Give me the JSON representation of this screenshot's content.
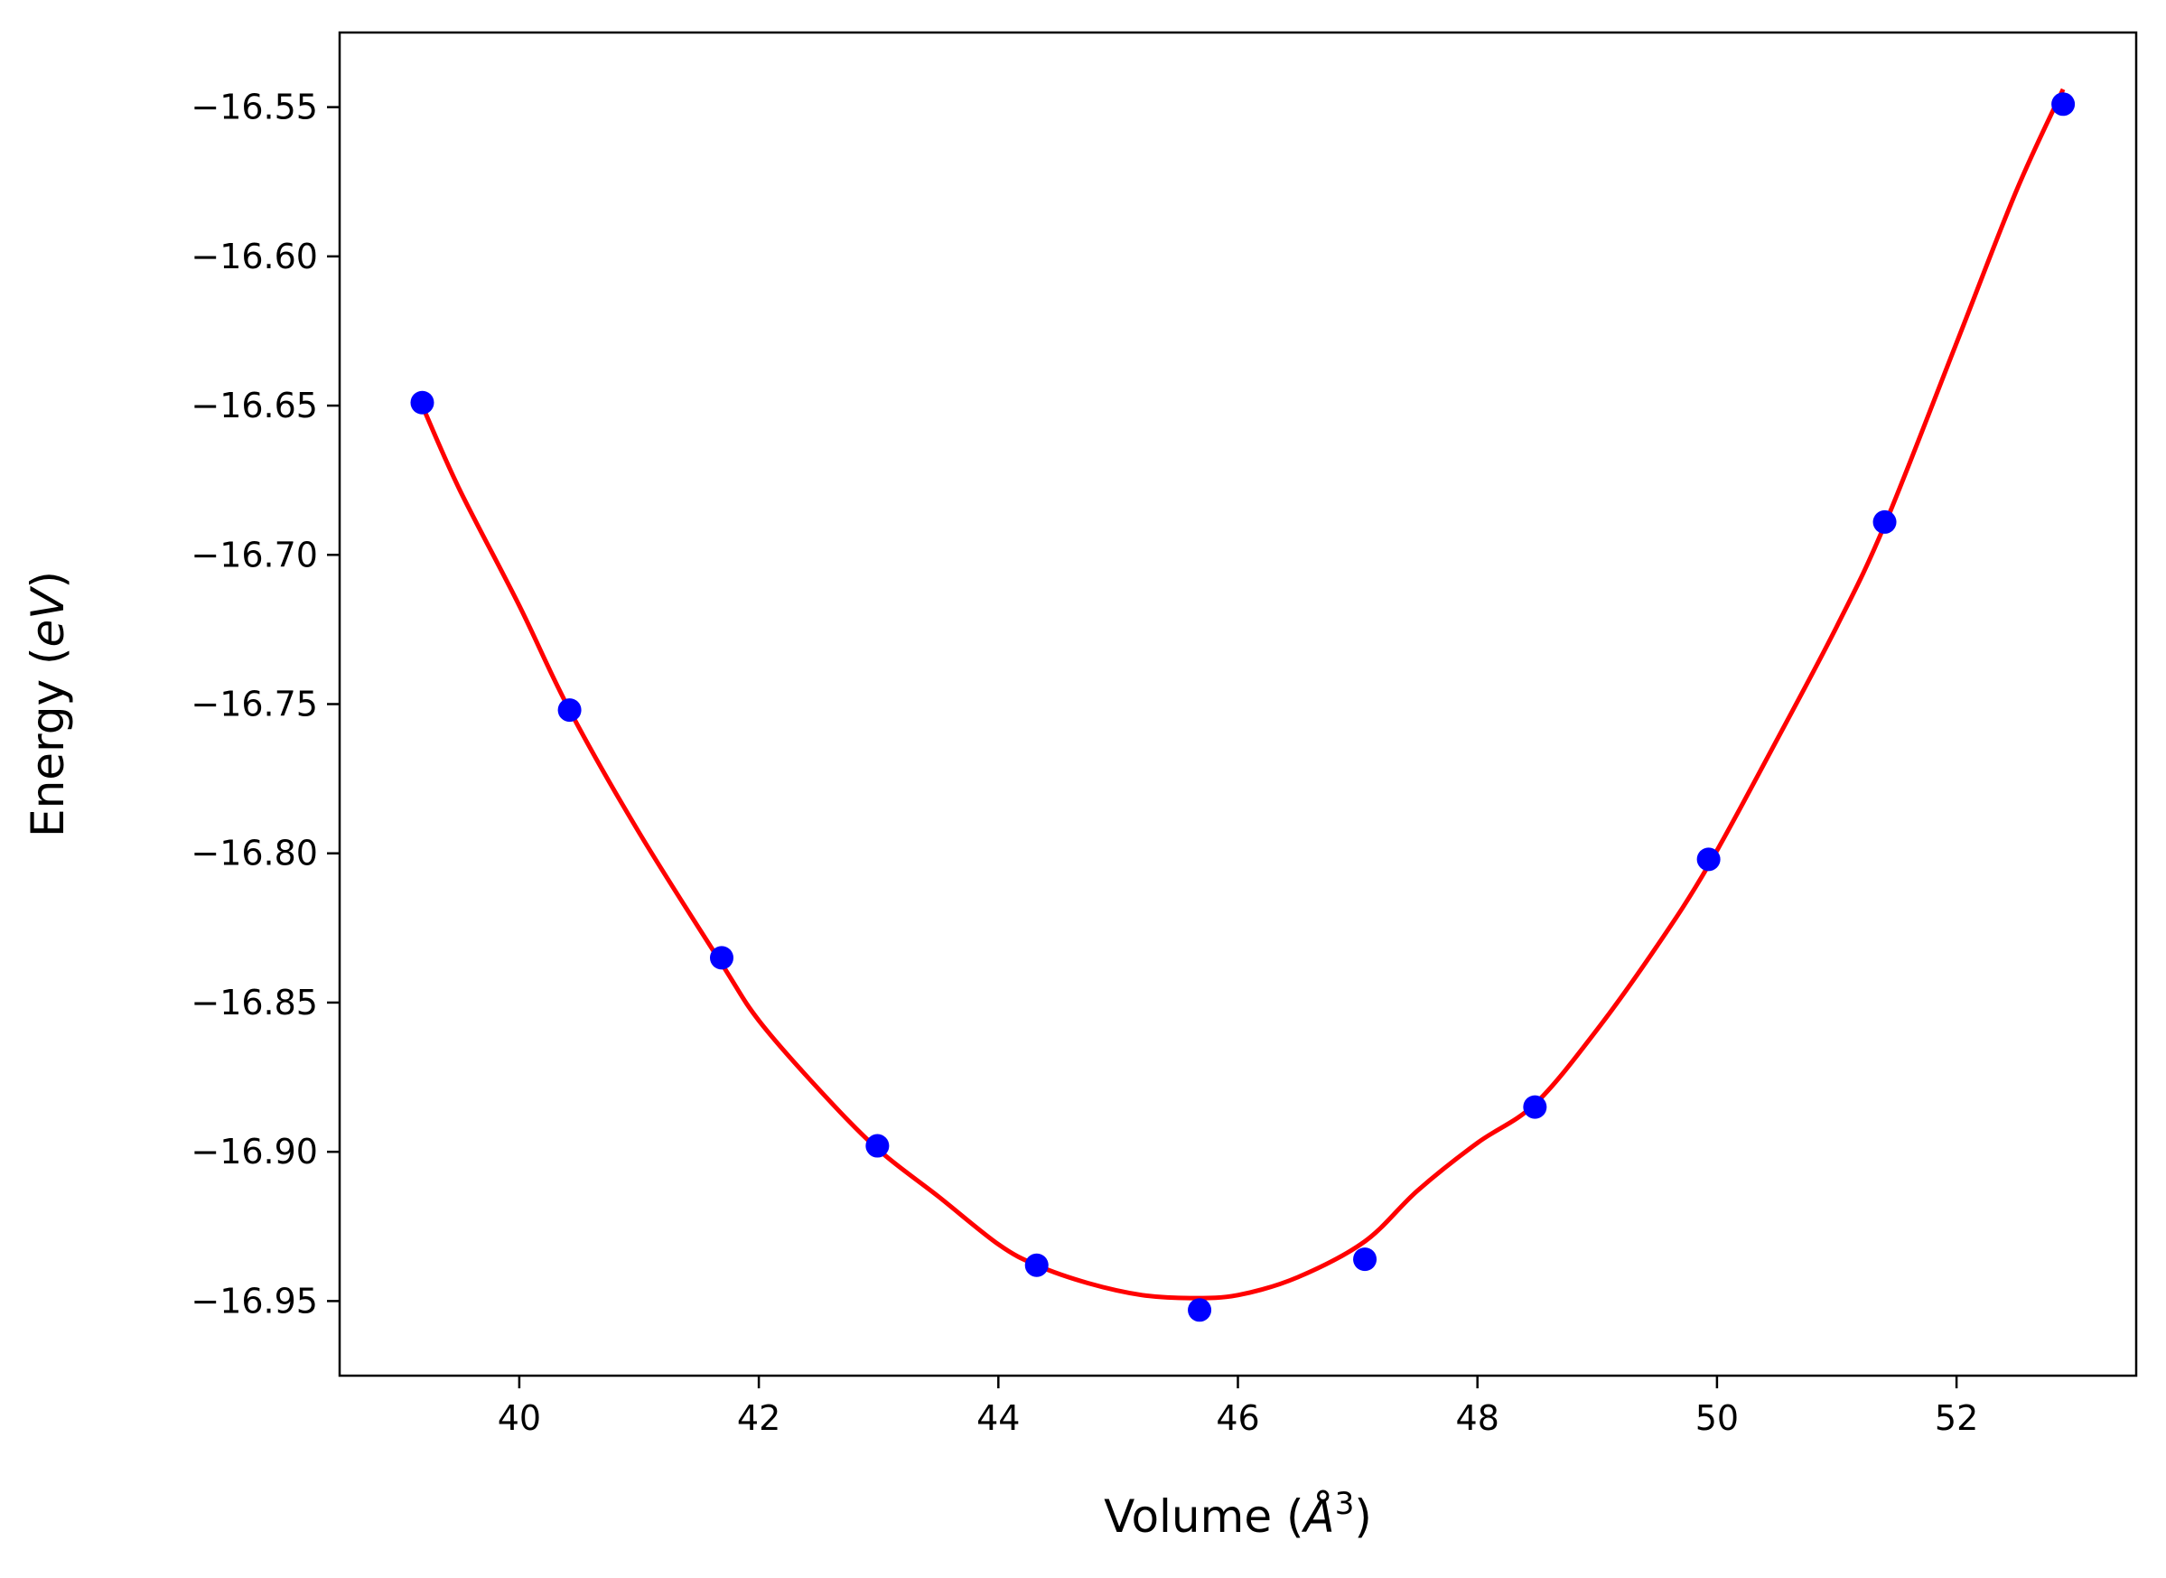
{
  "chart_data": {
    "type": "scatter",
    "title": "",
    "xlabel": {
      "prefix": "Volume (",
      "symbol": "Å",
      "exponent": "3",
      "suffix": ")"
    },
    "ylabel": {
      "prefix": "Energy (",
      "unit": "eV",
      "suffix": ")"
    },
    "xlim": [
      38.5,
      53.5
    ],
    "ylim": [
      -16.975,
      -16.525
    ],
    "x_ticks": [
      40,
      42,
      44,
      46,
      48,
      50,
      52
    ],
    "x_tick_labels": [
      "40",
      "42",
      "44",
      "46",
      "48",
      "50",
      "52"
    ],
    "y_ticks": [
      -16.55,
      -16.6,
      -16.65,
      -16.7,
      -16.75,
      -16.8,
      -16.85,
      -16.9,
      -16.95
    ],
    "y_tick_labels": [
      "−16.55",
      "−16.60",
      "−16.65",
      "−16.70",
      "−16.75",
      "−16.80",
      "−16.85",
      "−16.90",
      "−16.95"
    ],
    "grid": false,
    "legend": "none",
    "series": [
      {
        "kind": "points",
        "color": "#0000ff",
        "x": [
          39.19,
          40.42,
          41.69,
          42.99,
          44.32,
          45.68,
          47.06,
          48.48,
          49.93,
          51.4,
          52.89
        ],
        "y": [
          -16.649,
          -16.752,
          -16.835,
          -16.898,
          -16.938,
          -16.953,
          -16.936,
          -16.885,
          -16.802,
          -16.689,
          -16.549
        ]
      },
      {
        "kind": "fit-curve",
        "color": "#ff0000",
        "x": [
          39.19,
          39.5,
          40.0,
          40.42,
          41.0,
          41.69,
          42.0,
          42.5,
          42.99,
          43.5,
          44.0,
          44.32,
          44.75,
          45.2,
          45.6,
          46.0,
          46.5,
          47.06,
          47.5,
          48.0,
          48.48,
          49.0,
          49.5,
          49.93,
          50.5,
          51.0,
          51.4,
          52.0,
          52.5,
          52.89
        ],
        "y": [
          -16.65,
          -16.678,
          -16.717,
          -16.752,
          -16.793,
          -16.837,
          -16.856,
          -16.879,
          -16.899,
          -16.915,
          -16.931,
          -16.938,
          -16.944,
          -16.948,
          -16.949,
          -16.948,
          -16.942,
          -16.93,
          -16.913,
          -16.897,
          -16.884,
          -16.859,
          -16.831,
          -16.804,
          -16.762,
          -16.724,
          -16.69,
          -16.629,
          -16.578,
          -16.544
        ]
      }
    ]
  }
}
